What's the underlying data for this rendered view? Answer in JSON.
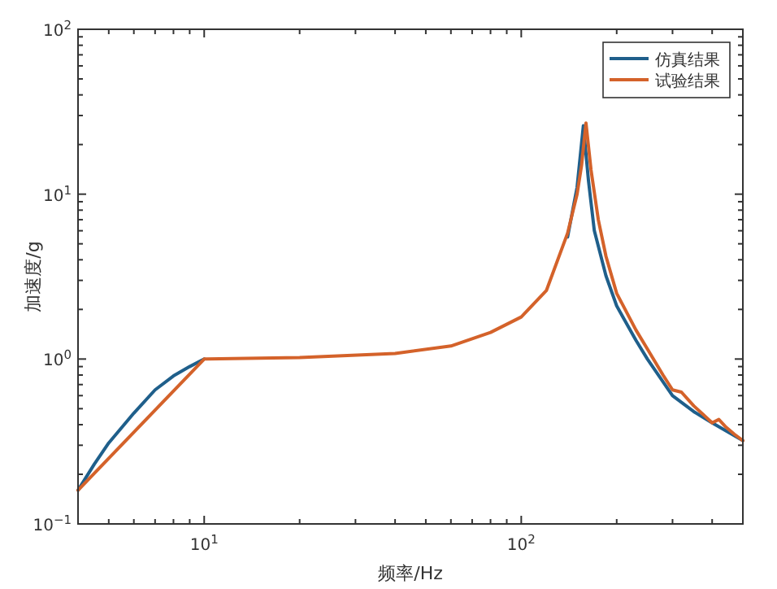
{
  "chart_data": {
    "type": "line",
    "xlabel": "频率/Hz",
    "ylabel": "加速度/g",
    "log": "xy",
    "grid": false,
    "legend": "top right",
    "line_style": "solid",
    "marker": "none",
    "xlim": [
      4,
      500
    ],
    "ylim": [
      0.1,
      100
    ],
    "xticks": [
      {
        "value": 10,
        "label": "10$^{1}$"
      },
      {
        "value": 100,
        "label": "10$^{2}$"
      }
    ],
    "yticks": [
      {
        "value": 0.1,
        "label": "10$^{−1}$"
      },
      {
        "value": 1,
        "label": "10$^{0}$"
      },
      {
        "value": 10,
        "label": "10$^{1}$"
      },
      {
        "value": 100,
        "label": "10$^{2}$"
      }
    ],
    "series": [
      {
        "name": "仿真结果",
        "color": "#1f5f8b",
        "x": [
          4,
          4.5,
          5,
          6,
          7,
          8,
          9,
          10
        ],
        "values": [
          0.16,
          0.23,
          0.31,
          0.47,
          0.65,
          0.79,
          0.9,
          1.0
        ]
      },
      {
        "color": "#1f5f8b",
        "x": [
          140,
          150,
          157,
          163,
          170,
          185,
          200,
          230,
          250,
          300,
          350,
          400,
          450,
          500
        ],
        "values": [
          5.5,
          11,
          26,
          12,
          6,
          3.2,
          2.1,
          1.3,
          1.0,
          0.6,
          0.48,
          0.41,
          0.36,
          0.32
        ]
      },
      {
        "name": "试验结果",
        "color": "#d4622a",
        "x": [
          4,
          10,
          20,
          40,
          60,
          80,
          100,
          120,
          140,
          150,
          155,
          160,
          166,
          175,
          185,
          200,
          230,
          250,
          280,
          300,
          320,
          350,
          380,
          400,
          420,
          440,
          470,
          500
        ],
        "values": [
          0.16,
          1.0,
          1.02,
          1.08,
          1.2,
          1.45,
          1.8,
          2.6,
          5.8,
          10,
          15,
          27,
          14,
          7,
          4.2,
          2.5,
          1.5,
          1.15,
          0.8,
          0.65,
          0.63,
          0.52,
          0.45,
          0.41,
          0.43,
          0.39,
          0.35,
          0.32
        ]
      }
    ]
  }
}
